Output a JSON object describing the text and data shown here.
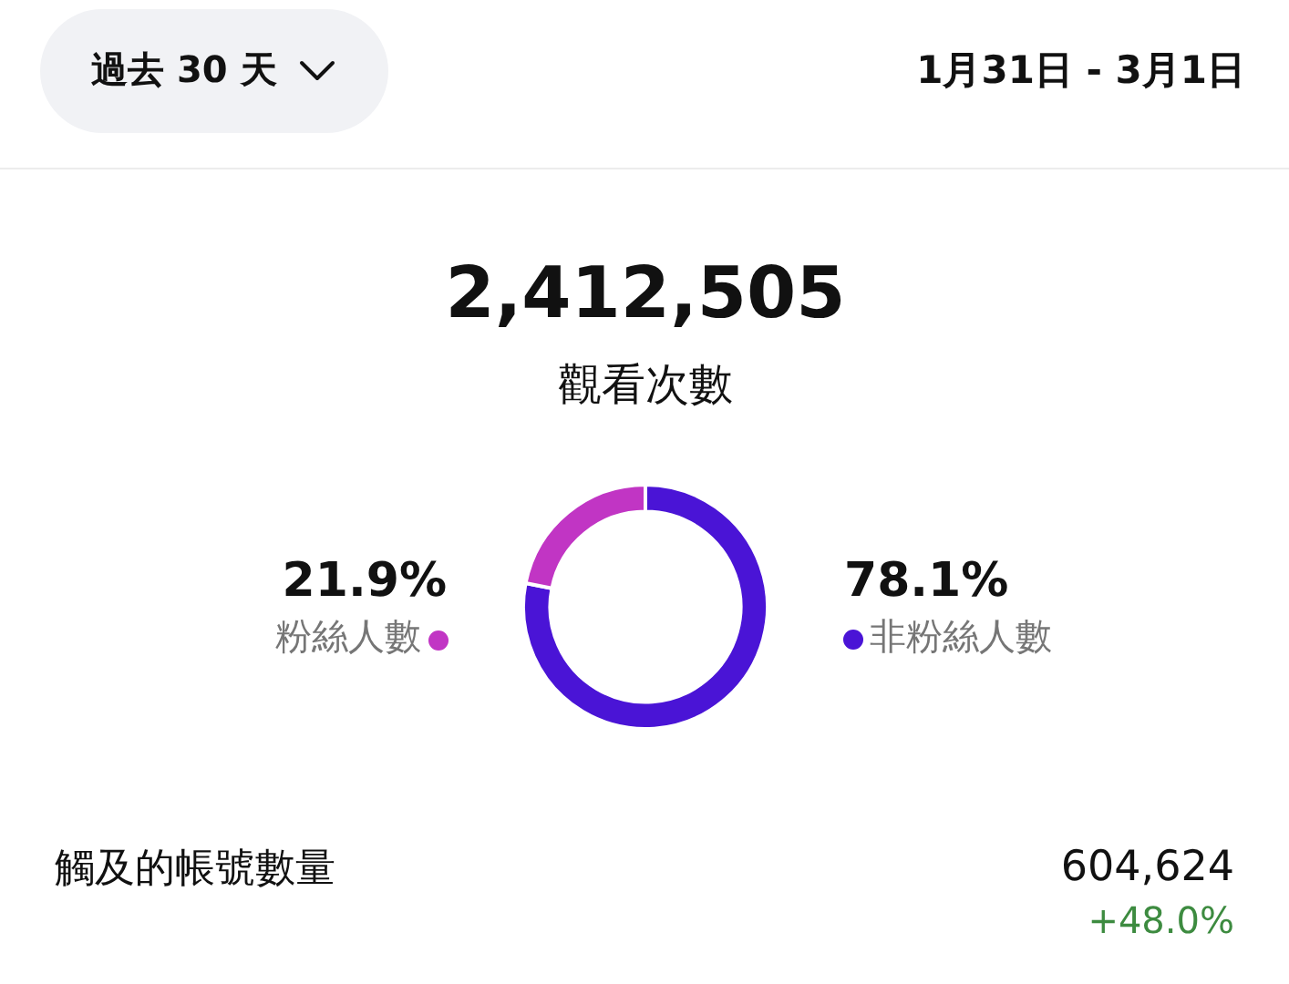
{
  "chart_data": {
    "type": "donut",
    "title": "2,412,505",
    "subtitle": "觀看次數",
    "categories": [
      "非粉絲人數",
      "粉絲人數"
    ],
    "values": [
      78.1,
      21.9
    ],
    "colors": [
      "#4a14d6",
      "#c135c4"
    ],
    "value_labels": [
      "78.1%",
      "21.9%"
    ],
    "annotations": [
      "過去 30 天",
      "1月31日 - 3月1日",
      "觸及的帳號數量",
      "604,624",
      "+48.0%"
    ]
  }
}
